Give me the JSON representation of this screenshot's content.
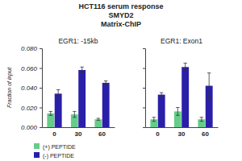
{
  "header": {
    "lines": [
      "HCT116 serum response",
      "SMYD2",
      "Matrix-ChIP"
    ]
  },
  "chart_data": [
    {
      "type": "bar",
      "title": "EGR1: -15kb",
      "y_label": "Fraction of input",
      "categories": [
        "0",
        "30",
        "60"
      ],
      "series": [
        {
          "name": "(+) PEPTIDE",
          "color": "#66cc8a",
          "values": [
            0.014,
            0.013,
            0.008
          ],
          "error": [
            0.002,
            0.003,
            0.001
          ]
        },
        {
          "name": "(-) PEPTIDE",
          "color": "#2a1fa8",
          "values": [
            0.034,
            0.058,
            0.045
          ],
          "error": [
            0.004,
            0.003,
            0.002
          ]
        }
      ],
      "ylim": [
        0,
        0.08
      ],
      "yticks": [
        {
          "value": 0,
          "label": "0.000"
        },
        {
          "value": 0.02,
          "label": "0.020"
        },
        {
          "value": 0.04,
          "label": "0.040"
        },
        {
          "value": 0.06,
          "label": "0.060"
        },
        {
          "value": 0.08,
          "label": "0.080"
        }
      ],
      "legend": "lower left"
    },
    {
      "type": "bar",
      "title": "EGR1: Exon1",
      "categories": [
        "0",
        "30",
        "60"
      ],
      "series": [
        {
          "color": "#66cc8a",
          "values": [
            0.008,
            0.016,
            0.008
          ],
          "error": [
            0.002,
            0.004,
            0.002
          ]
        },
        {
          "color": "#2a1fa8",
          "values": [
            0.033,
            0.061,
            0.042
          ],
          "error": [
            0.002,
            0.004,
            0.013
          ]
        }
      ],
      "ylim": [
        0,
        0.08
      ],
      "yticks": [
        0,
        0.02,
        0.04,
        0.06,
        0.08
      ],
      "tick_labels": "x"
    }
  ]
}
